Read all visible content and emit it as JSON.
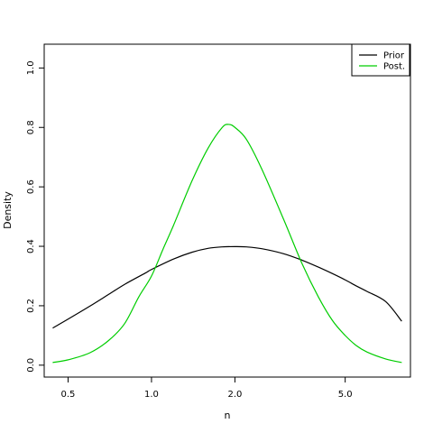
{
  "chart_data": {
    "type": "line",
    "xlabel": "n",
    "ylabel": "Density",
    "x_scale": "log",
    "xlim": [
      0.41,
      8.6
    ],
    "ylim": [
      -0.04,
      1.08
    ],
    "x_ticks": [
      {
        "value": 0.5,
        "label": "0.5"
      },
      {
        "value": 1.0,
        "label": "1.0"
      },
      {
        "value": 2.0,
        "label": "2.0"
      },
      {
        "value": 5.0,
        "label": "5.0"
      }
    ],
    "y_ticks": [
      {
        "value": 0.0,
        "label": "0.0"
      },
      {
        "value": 0.2,
        "label": "0.2"
      },
      {
        "value": 0.4,
        "label": "0.4"
      },
      {
        "value": 0.6,
        "label": "0.6"
      },
      {
        "value": 0.8,
        "label": "0.8"
      },
      {
        "value": 1.0,
        "label": "1.0"
      }
    ],
    "grid": false,
    "legend_position": "top-right",
    "series": [
      {
        "name": "Prior",
        "color": "#000000",
        "x": [
          0.44,
          0.5,
          0.6,
          0.7,
          0.8,
          0.95,
          1.0,
          1.2,
          1.4,
          1.6,
          1.8,
          2.0,
          2.2,
          2.5,
          3.0,
          3.5,
          4.0,
          4.5,
          5.0,
          5.5,
          6.0,
          7.0,
          8.0
        ],
        "y": [
          0.125,
          0.155,
          0.199,
          0.238,
          0.272,
          0.31,
          0.322,
          0.357,
          0.38,
          0.393,
          0.398,
          0.399,
          0.398,
          0.392,
          0.375,
          0.353,
          0.33,
          0.308,
          0.287,
          0.266,
          0.248,
          0.214,
          0.148
        ]
      },
      {
        "name": "Post.",
        "color": "#00cd00",
        "x": [
          0.44,
          0.5,
          0.6,
          0.7,
          0.8,
          0.9,
          1.0,
          1.1,
          1.2,
          1.4,
          1.6,
          1.8,
          1.9,
          2.0,
          2.2,
          2.5,
          3.0,
          3.5,
          4.0,
          4.5,
          5.0,
          5.5,
          6.0,
          7.0,
          8.0
        ],
        "y": [
          0.009,
          0.018,
          0.042,
          0.083,
          0.14,
          0.23,
          0.3,
          0.39,
          0.47,
          0.62,
          0.73,
          0.8,
          0.81,
          0.8,
          0.76,
          0.66,
          0.49,
          0.34,
          0.23,
          0.15,
          0.1,
          0.065,
          0.044,
          0.021,
          0.009
        ]
      }
    ]
  }
}
